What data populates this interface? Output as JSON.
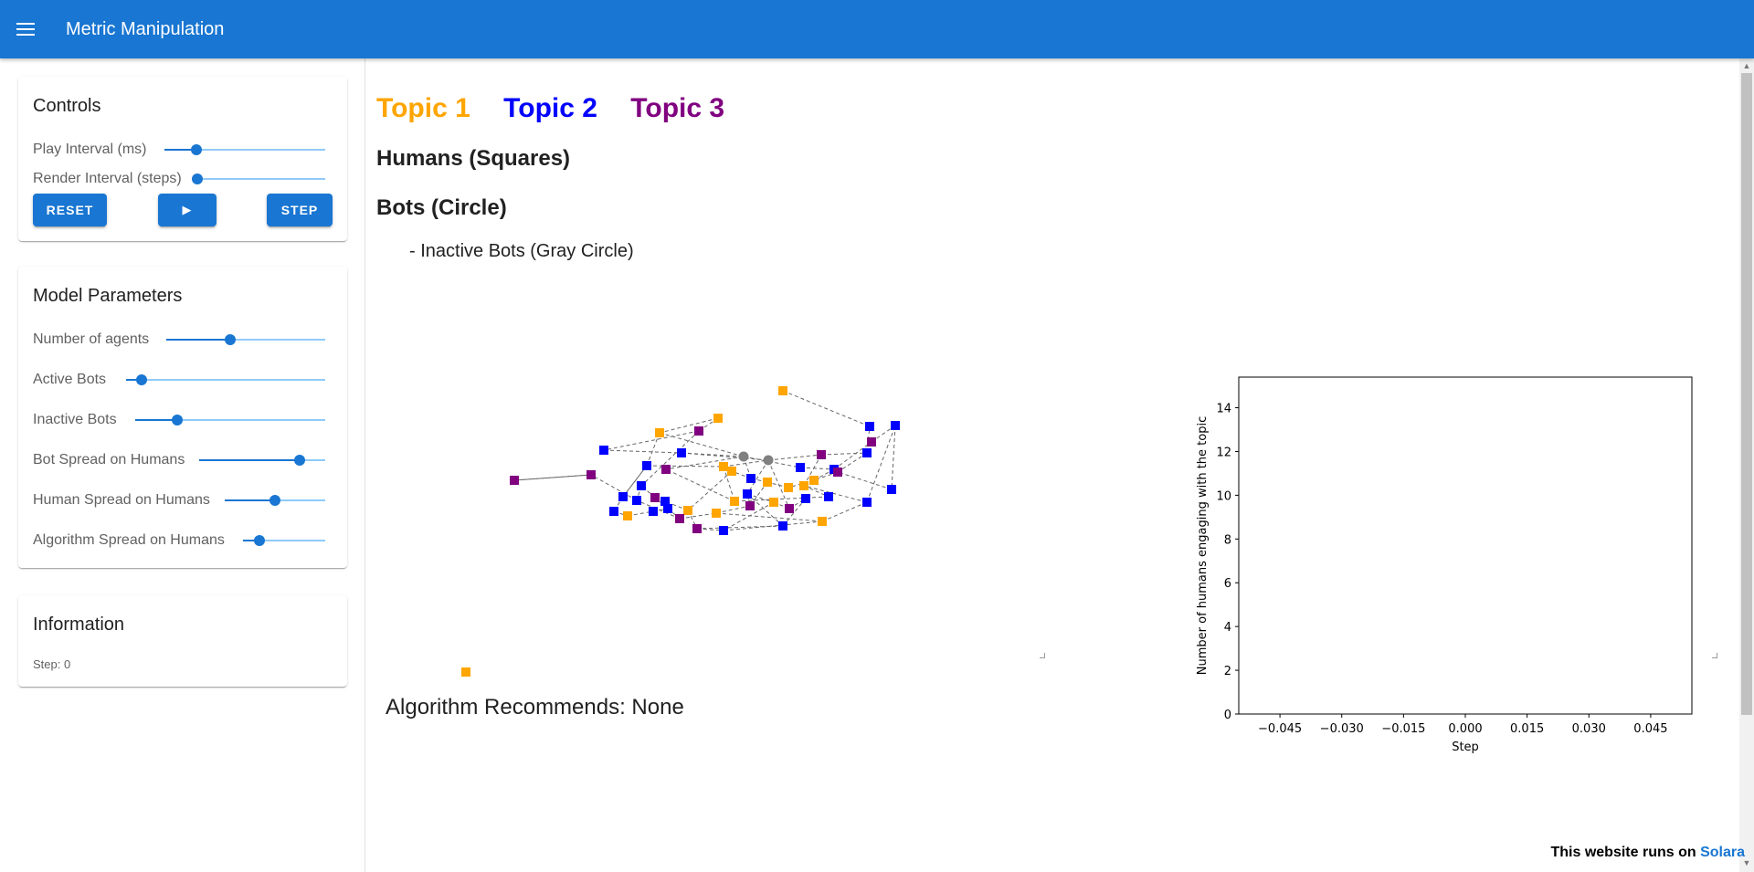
{
  "app": {
    "title": "Metric Manipulation"
  },
  "controls": {
    "title": "Controls",
    "play_interval_label": "Play Interval (ms)",
    "play_interval_value": 0.2,
    "render_interval_label": "Render Interval (steps)",
    "render_interval_value": 0.0,
    "reset_label": "RESET",
    "play_label": "▶",
    "step_label": "STEP"
  },
  "model_parameters": {
    "title": "Model Parameters",
    "sliders": [
      {
        "label": "Number of agents",
        "value": 0.4
      },
      {
        "label": "Active Bots",
        "value": 0.08
      },
      {
        "label": "Inactive Bots",
        "value": 0.22
      },
      {
        "label": "Bot Spread on Humans",
        "value": 0.8
      },
      {
        "label": "Human Spread on Humans",
        "value": 0.5
      },
      {
        "label": "Algorithm Spread on Humans",
        "value": 0.2
      }
    ]
  },
  "information": {
    "title": "Information",
    "step_text": "Step: 0"
  },
  "legend_text": {
    "topic1": "Topic 1",
    "topic2": "Topic 2",
    "topic3": "Topic 3",
    "topic1_color": "#ffa500",
    "topic2_color": "#0000ff",
    "topic3_color": "#800080",
    "humans": "Humans (Squares)",
    "bots": "Bots (Circle)",
    "inactive_bots": "- Inactive Bots (Gray Circle)"
  },
  "algorithm_recommends": "Algorithm Recommends: None",
  "footer": {
    "text": "This website runs on ",
    "link": "Solara"
  },
  "chart_data": {
    "type": "line",
    "xlabel": "Step",
    "ylabel": "Number of humans engaging with the topic",
    "xlim": [
      -0.055,
      0.055
    ],
    "ylim": [
      0,
      15.4
    ],
    "x_ticks": [
      "−0.045",
      "−0.030",
      "−0.015",
      "0.000",
      "0.015",
      "0.030",
      "0.045"
    ],
    "x_tick_values": [
      -0.045,
      -0.03,
      -0.015,
      0,
      0.015,
      0.03,
      0.045
    ],
    "y_ticks": [
      "0",
      "2",
      "4",
      "6",
      "8",
      "10",
      "12",
      "14"
    ],
    "y_tick_values": [
      0,
      2,
      4,
      6,
      8,
      10,
      12,
      14
    ],
    "legend_position": "upper right outside",
    "series": [
      {
        "name": "Topic 1",
        "color": "#ffa500",
        "x": [],
        "y": []
      },
      {
        "name": "Topic 2",
        "color": "#0000ff",
        "x": [],
        "y": []
      },
      {
        "name": "Topic 3",
        "color": "#800080",
        "x": [],
        "y": []
      }
    ]
  },
  "network": {
    "colors": {
      "orange": "#ffa500",
      "blue": "#0000ff",
      "purple": "#800080",
      "gray": "#808080",
      "edge": "#666666"
    }
  }
}
